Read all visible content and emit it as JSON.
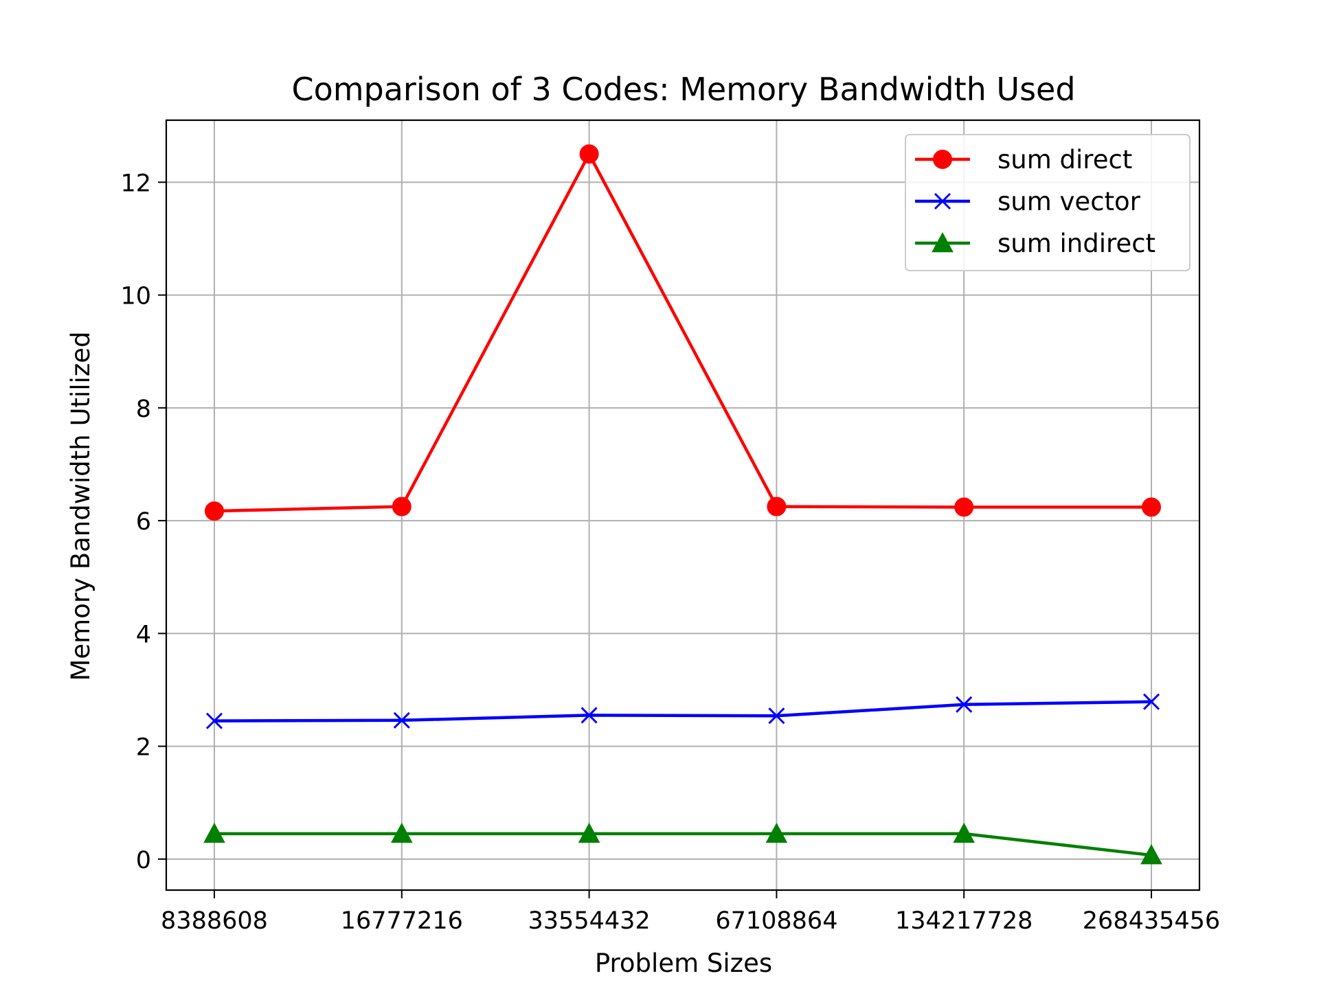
{
  "chart_data": {
    "type": "line",
    "title": "Comparison of 3 Codes: Memory Bandwidth Used",
    "xlabel": "Problem Sizes",
    "ylabel": "Memory Bandwidth Utilized",
    "categories": [
      "8388608",
      "16777216",
      "33554432",
      "67108864",
      "134217728",
      "268435456"
    ],
    "ylim": [
      -0.55,
      13.1
    ],
    "yticks": [
      0,
      2,
      4,
      6,
      8,
      10,
      12
    ],
    "grid": true,
    "legend_position": "top-right",
    "series": [
      {
        "name": "sum direct",
        "color": "#ff0000",
        "marker": "circle",
        "values": [
          6.17,
          6.25,
          12.5,
          6.25,
          6.24,
          6.24
        ]
      },
      {
        "name": "sum vector",
        "color": "#0000ff",
        "marker": "x",
        "values": [
          2.45,
          2.46,
          2.55,
          2.54,
          2.74,
          2.79
        ]
      },
      {
        "name": "sum indirect",
        "color": "#008000",
        "marker": "triangle",
        "values": [
          0.45,
          0.45,
          0.45,
          0.45,
          0.45,
          0.07
        ]
      }
    ]
  }
}
